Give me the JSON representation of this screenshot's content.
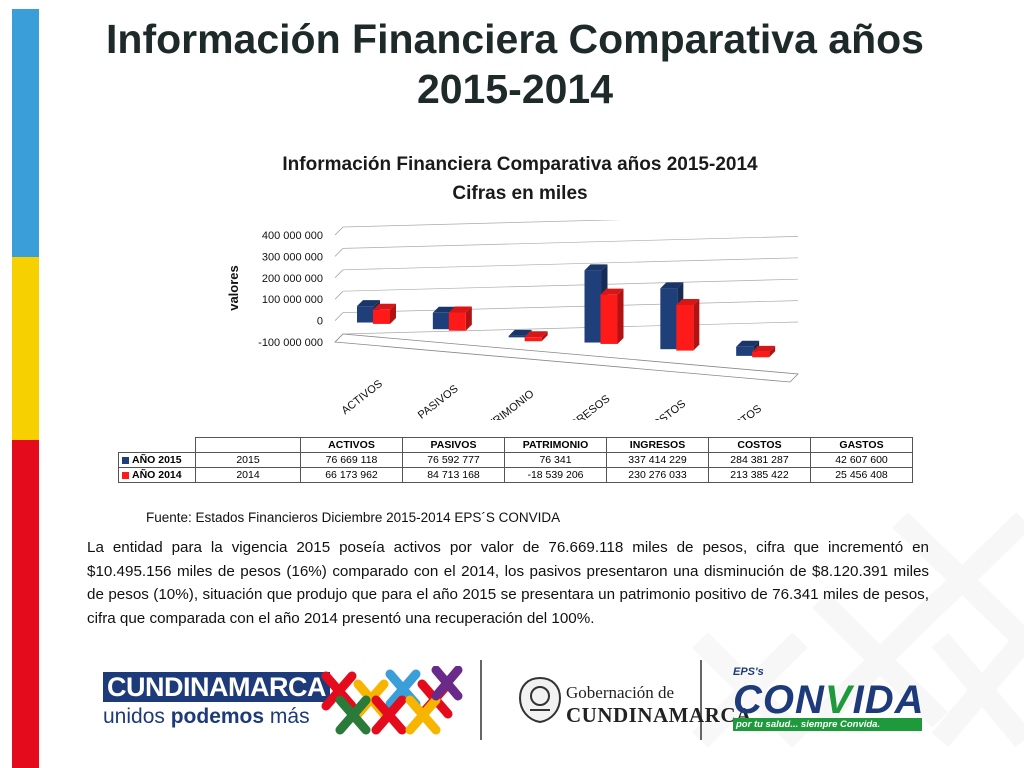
{
  "slide": {
    "title": "Información Financiera Comparativa años 2015-2014",
    "source": "Fuente: Estados Financieros Diciembre 2015-2014 EPS´S CONVIDA",
    "paragraph": "La entidad para la vigencia 2015 poseía activos por valor de 76.669.118 miles de pesos, cifra que incrementó en $10.495.156 miles de pesos  (16%) comparado con el 2014, los pasivos presentaron una disminución de $8.120.391 miles de pesos (10%), situación que produjo que para el año 2015 se presentara un patrimonio positivo de 76.341 miles de pesos, cifra que comparada con el año 2014 presentó una recuperación del 100%.",
    "colors": {
      "strip_blue": "#3a9ed9",
      "strip_yellow": "#f7d000",
      "strip_red": "#e30b1c"
    }
  },
  "chart_data": {
    "type": "bar",
    "title": "Información Financiera Comparativa años 2015-2014",
    "subtitle": "Cifras en miles",
    "xlabel": "",
    "ylabel": "valores",
    "ylim": [
      -100000000,
      400000000
    ],
    "yticks": [
      "400 000 000",
      "300 000 000",
      "200 000 000",
      "100 000 000",
      "0",
      "-100 000 000"
    ],
    "ytick_values": [
      400000000,
      300000000,
      200000000,
      100000000,
      0,
      -100000000
    ],
    "categories": [
      "ACTIVOS",
      "PASIVOS",
      "PATRIMONIO",
      "INGRESOS",
      "COSTOS",
      "GASTOS"
    ],
    "series": [
      {
        "name": "AÑO 2015",
        "year": "2015",
        "color": "#1f3f7a",
        "values": [
          76669118,
          76592777,
          76341,
          337414229,
          284381287,
          42607600
        ],
        "labels": [
          "76 669 118",
          "76 592 777",
          "76 341",
          "337 414 229",
          "284 381 287",
          "42 607 600"
        ]
      },
      {
        "name": "AÑO 2014",
        "year": "2014",
        "color": "#ff1a1a",
        "values": [
          66173962,
          84713168,
          -18539206,
          230276033,
          213385422,
          25456408
        ],
        "labels": [
          "66 173 962",
          "84 713 168",
          "-18 539 206",
          "230 276 033",
          "213 385 422",
          "25 456 408"
        ]
      }
    ],
    "grid": true,
    "legend": "table-below",
    "style": "3d-clustered-column"
  },
  "logos": {
    "cundinamarca_word": "CUNDINAMARCA",
    "cundinamarca_slogan_1": "unidos ",
    "cundinamarca_slogan_2": "podemos",
    "cundinamarca_slogan_3": " más",
    "gobernacion_l1": "Gobernación de",
    "gobernacion_l2": "CUNDINAMARCA",
    "convida_eps": "EPS's",
    "convida_con": "CON",
    "convida_v": "V",
    "convida_ida": "IDA",
    "convida_tag": "por tu salud... siempre Convida."
  }
}
